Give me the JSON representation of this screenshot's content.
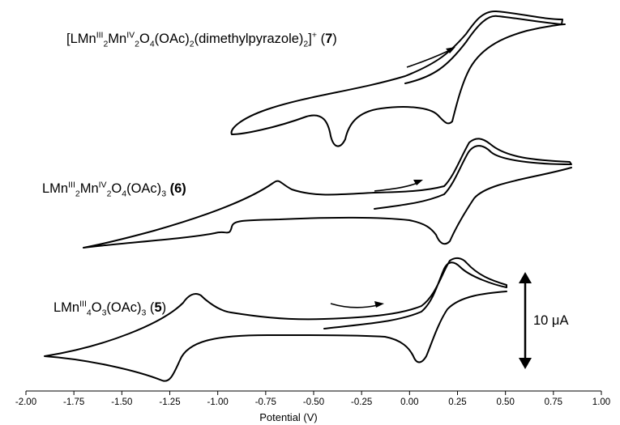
{
  "chart_data": {
    "type": "line",
    "title": "",
    "xlabel": "Potential (V)",
    "ylabel": "",
    "xlim": [
      -2.0,
      1.0
    ],
    "xticks": [
      "-2.00",
      "-1.75",
      "-1.50",
      "-1.25",
      "-1.00",
      "-0.75",
      "-0.50",
      "-0.25",
      "0.00",
      "0.25",
      "0.50",
      "0.75",
      "1.00"
    ],
    "grid": false,
    "legend": "none",
    "scale_bar": {
      "label": "10 μA",
      "current_uA": 10
    },
    "series": [
      {
        "label_parts": [
          "[LMn",
          "III",
          "2",
          "Mn",
          "IV",
          "2",
          "O",
          "4",
          "(OAc)",
          "2",
          "(dimethylpyrazole)",
          "2",
          "]",
          "+",
          " (",
          "7",
          ")"
        ],
        "scan_start_V": -0.05,
        "scan_direction": "positive",
        "sweep_range_V": [
          -0.95,
          0.8
        ],
        "features_V": {
          "anodic_peak": 0.35,
          "cathodic_peak": 0.2,
          "reduction_peak": -0.52,
          "reoxidation_peak": -0.45
        }
      },
      {
        "label_parts": [
          "LMn",
          "III",
          "2",
          "Mn",
          "IV",
          "2",
          "O",
          "4",
          "(OAc)",
          "3",
          " ",
          "(6)"
        ],
        "scan_start_V": -0.2,
        "scan_direction": "positive",
        "sweep_range_V": [
          -1.72,
          0.82
        ],
        "features_V": {
          "anodic_peak": 0.35,
          "cathodic_peak": 0.15,
          "reduction_peak": -1.1,
          "reoxidation_peak": -0.68
        }
      },
      {
        "label_parts": [
          "LMn",
          "III",
          "4",
          "O",
          "3",
          "(OAc)",
          "3",
          " (",
          "5",
          ")"
        ],
        "scan_start_V": -0.45,
        "scan_direction": "positive",
        "sweep_range_V": [
          -1.92,
          0.48
        ],
        "features_V": {
          "anodic_peak": 0.2,
          "cathodic_peak": 0.05,
          "reduction_peak": -1.27,
          "reoxidation_peak": -0.75
        }
      }
    ]
  }
}
